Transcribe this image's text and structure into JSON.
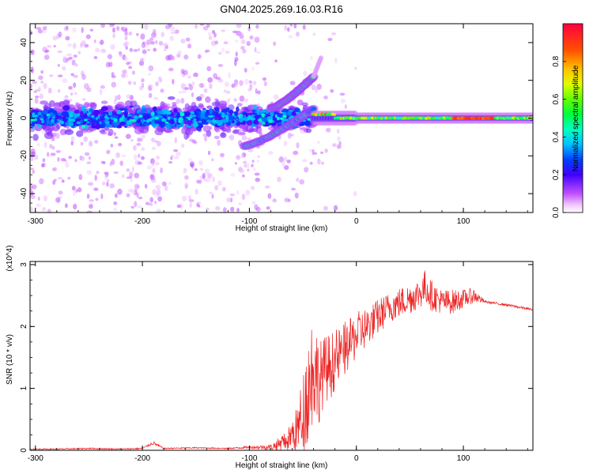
{
  "title": "GN04.2025.269.16.03.R16",
  "chart_data": [
    {
      "type": "heatmap",
      "title": "GN04.2025.269.16.03.R16",
      "xlabel": "Height of straight line (km)",
      "ylabel": "Frequency (Hz)",
      "xlim": [
        -305,
        165
      ],
      "ylim": [
        -50,
        50
      ],
      "xticks": [
        -300,
        -200,
        -100,
        0,
        100
      ],
      "yticks": [
        -40,
        -20,
        0,
        20,
        40
      ],
      "colorbar": {
        "label": "Normalized spectral amplitude",
        "range": [
          0,
          1
        ],
        "ticks": [
          0.0,
          0.2,
          0.4,
          0.6,
          0.8
        ]
      },
      "features": [
        {
          "name": "noisy band",
          "x_range": [
            -305,
            -40
          ],
          "freq_center": 0,
          "freq_spread": 10,
          "amplitude": 0.25
        },
        {
          "name": "upper branch",
          "x_start": -80,
          "x_end": -40,
          "freq_start": 5,
          "freq_end": 22,
          "amplitude": 0.45
        },
        {
          "name": "lower branch",
          "x_start": -105,
          "x_end": -40,
          "freq_start": -15,
          "freq_end": 5,
          "amplitude": 0.4
        },
        {
          "name": "stable line",
          "x_range": [
            -40,
            165
          ],
          "freq_center": 0,
          "freq_spread": 2,
          "amplitude": 0.6
        },
        {
          "name": "peak segment",
          "x_range": [
            90,
            130
          ],
          "freq_center": 0,
          "amplitude": 0.95
        }
      ]
    },
    {
      "type": "line",
      "xlabel": "Height of straight line (km)",
      "ylabel": "SNR (10 * v/v)",
      "y_multiplier": "(x10^4)",
      "xlim": [
        -305,
        165
      ],
      "ylim": [
        0,
        3.05
      ],
      "xticks": [
        -300,
        -200,
        -100,
        0,
        100
      ],
      "yticks": [
        0,
        1,
        2,
        3
      ],
      "color": "#ee2222",
      "series": [
        {
          "name": "SNR",
          "x": [
            -305,
            -280,
            -250,
            -220,
            -200,
            -190,
            -180,
            -150,
            -120,
            -100,
            -80,
            -65,
            -55,
            -50,
            -45,
            -40,
            -35,
            -30,
            -25,
            -20,
            -15,
            -10,
            -5,
            0,
            10,
            20,
            30,
            40,
            50,
            60,
            65,
            70,
            80,
            90,
            100,
            110,
            120,
            140,
            165
          ],
          "values": [
            0.02,
            0.02,
            0.03,
            0.02,
            0.03,
            0.12,
            0.03,
            0.04,
            0.03,
            0.05,
            0.05,
            0.15,
            0.35,
            0.6,
            1.0,
            1.4,
            1.1,
            1.3,
            1.35,
            1.45,
            1.55,
            1.65,
            1.75,
            1.85,
            2.0,
            2.15,
            2.3,
            2.38,
            2.45,
            2.55,
            2.65,
            2.5,
            2.4,
            2.4,
            2.45,
            2.5,
            2.4,
            2.35,
            2.27
          ],
          "noise_amplitude": [
            0.01,
            0.01,
            0.01,
            0.01,
            0.01,
            0.03,
            0.01,
            0.01,
            0.01,
            0.02,
            0.05,
            0.15,
            0.35,
            0.6,
            0.8,
            0.9,
            0.6,
            0.5,
            0.5,
            0.45,
            0.4,
            0.4,
            0.35,
            0.35,
            0.3,
            0.3,
            0.25,
            0.25,
            0.25,
            0.25,
            0.3,
            0.25,
            0.2,
            0.2,
            0.15,
            0.12,
            0.02,
            0.02,
            0.02
          ]
        }
      ]
    }
  ]
}
